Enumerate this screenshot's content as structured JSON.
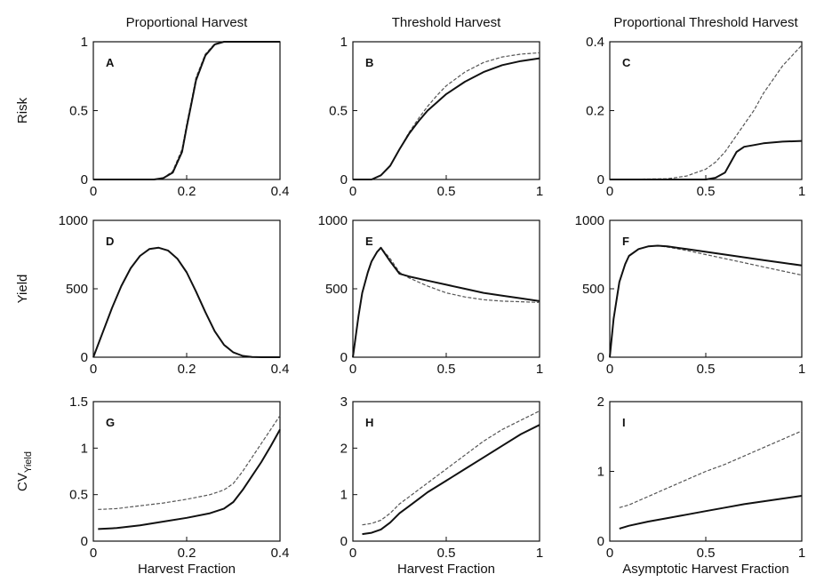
{
  "chart_data": [
    {
      "type": "line",
      "panel": "A",
      "row": 0,
      "col": 0,
      "col_title": "Proportional Harvest",
      "ylabel": "Risk",
      "xlim": [
        0,
        0.4
      ],
      "ylim": [
        0,
        1
      ],
      "xticks": [
        0,
        0.2,
        0.4
      ],
      "xtick_labels": [
        "0",
        "0.2",
        "0.4"
      ],
      "yticks": [
        0,
        0.5,
        1
      ],
      "ytick_labels": [
        "0",
        "0.5",
        "1"
      ],
      "series": [
        {
          "style": "solid",
          "x": [
            0,
            0.13,
            0.15,
            0.17,
            0.19,
            0.2,
            0.21,
            0.22,
            0.24,
            0.26,
            0.28,
            0.3,
            0.4
          ],
          "y": [
            0,
            0,
            0.01,
            0.05,
            0.2,
            0.38,
            0.55,
            0.72,
            0.9,
            0.98,
            1,
            1,
            1
          ]
        },
        {
          "style": "dashed",
          "x": [
            0,
            0.13,
            0.15,
            0.17,
            0.19,
            0.2,
            0.21,
            0.22,
            0.24,
            0.26,
            0.28,
            0.3,
            0.4
          ],
          "y": [
            0,
            0,
            0.01,
            0.06,
            0.22,
            0.4,
            0.57,
            0.74,
            0.91,
            0.985,
            1,
            1,
            1
          ]
        }
      ]
    },
    {
      "type": "line",
      "panel": "B",
      "row": 0,
      "col": 1,
      "col_title": "Threshold Harvest",
      "xlim": [
        0,
        1
      ],
      "ylim": [
        0,
        1
      ],
      "xticks": [
        0,
        0.5,
        1
      ],
      "xtick_labels": [
        "0",
        "0.5",
        "1"
      ],
      "yticks": [
        0,
        0.5,
        1
      ],
      "ytick_labels": [
        "0",
        "0.5",
        "1"
      ],
      "series": [
        {
          "style": "solid",
          "x": [
            0,
            0.1,
            0.15,
            0.2,
            0.25,
            0.3,
            0.35,
            0.4,
            0.45,
            0.5,
            0.6,
            0.7,
            0.8,
            0.9,
            1.0
          ],
          "y": [
            0,
            0,
            0.03,
            0.1,
            0.22,
            0.33,
            0.42,
            0.5,
            0.56,
            0.62,
            0.71,
            0.78,
            0.83,
            0.86,
            0.88
          ]
        },
        {
          "style": "dashed",
          "x": [
            0,
            0.1,
            0.15,
            0.2,
            0.25,
            0.3,
            0.35,
            0.4,
            0.45,
            0.5,
            0.6,
            0.7,
            0.8,
            0.9,
            1.0
          ],
          "y": [
            0,
            0,
            0.03,
            0.1,
            0.22,
            0.34,
            0.44,
            0.53,
            0.61,
            0.68,
            0.78,
            0.85,
            0.89,
            0.91,
            0.92
          ]
        }
      ]
    },
    {
      "type": "line",
      "panel": "C",
      "row": 0,
      "col": 2,
      "col_title": "Proportional Threshold Harvest",
      "xlim": [
        0,
        1
      ],
      "ylim": [
        0,
        0.4
      ],
      "xticks": [
        0,
        0.5,
        1
      ],
      "xtick_labels": [
        "0",
        "0.5",
        "1"
      ],
      "yticks": [
        0,
        0.2,
        0.4
      ],
      "ytick_labels": [
        "0",
        "0.2",
        "0.4"
      ],
      "series": [
        {
          "style": "solid",
          "x": [
            0,
            0.5,
            0.55,
            0.6,
            0.63,
            0.66,
            0.7,
            0.75,
            0.8,
            0.9,
            1.0
          ],
          "y": [
            0,
            0,
            0.005,
            0.02,
            0.05,
            0.08,
            0.095,
            0.1,
            0.105,
            0.11,
            0.112
          ]
        },
        {
          "style": "dashed",
          "x": [
            0,
            0.3,
            0.4,
            0.5,
            0.55,
            0.6,
            0.65,
            0.7,
            0.75,
            0.8,
            0.85,
            0.9,
            0.95,
            1.0
          ],
          "y": [
            0,
            0.002,
            0.01,
            0.03,
            0.05,
            0.08,
            0.12,
            0.16,
            0.2,
            0.25,
            0.29,
            0.33,
            0.36,
            0.39
          ]
        }
      ]
    },
    {
      "type": "line",
      "panel": "D",
      "row": 1,
      "col": 0,
      "ylabel": "Yield",
      "xlim": [
        0,
        0.4
      ],
      "ylim": [
        0,
        1000
      ],
      "xticks": [
        0,
        0.2,
        0.4
      ],
      "xtick_labels": [
        "0",
        "0.2",
        "0.4"
      ],
      "yticks": [
        0,
        500,
        1000
      ],
      "ytick_labels": [
        "0",
        "500",
        "1000"
      ],
      "series": [
        {
          "style": "solid",
          "x": [
            0,
            0.02,
            0.04,
            0.06,
            0.08,
            0.1,
            0.12,
            0.14,
            0.16,
            0.18,
            0.2,
            0.22,
            0.24,
            0.26,
            0.28,
            0.3,
            0.32,
            0.34,
            0.36,
            0.38,
            0.4
          ],
          "y": [
            0,
            180,
            360,
            520,
            650,
            740,
            790,
            800,
            780,
            720,
            620,
            480,
            330,
            190,
            90,
            35,
            10,
            2,
            0,
            0,
            0
          ]
        },
        {
          "style": "dashed",
          "x": [
            0,
            0.02,
            0.04,
            0.06,
            0.08,
            0.1,
            0.12,
            0.14,
            0.16,
            0.18,
            0.2,
            0.22,
            0.24,
            0.26,
            0.28,
            0.3,
            0.32,
            0.34,
            0.36,
            0.38,
            0.4
          ],
          "y": [
            0,
            180,
            360,
            520,
            650,
            740,
            790,
            800,
            780,
            720,
            620,
            480,
            330,
            190,
            90,
            35,
            10,
            2,
            0,
            0,
            0
          ]
        }
      ]
    },
    {
      "type": "line",
      "panel": "E",
      "row": 1,
      "col": 1,
      "xlim": [
        0,
        1
      ],
      "ylim": [
        0,
        1000
      ],
      "xticks": [
        0,
        0.5,
        1
      ],
      "xtick_labels": [
        "0",
        "0.5",
        "1"
      ],
      "yticks": [
        0,
        500,
        1000
      ],
      "ytick_labels": [
        "0",
        "500",
        "1000"
      ],
      "series": [
        {
          "style": "solid",
          "x": [
            0,
            0.03,
            0.05,
            0.08,
            0.1,
            0.13,
            0.15,
            0.2,
            0.25,
            0.3,
            0.4,
            0.5,
            0.6,
            0.7,
            0.8,
            0.9,
            1.0
          ],
          "y": [
            0,
            300,
            470,
            620,
            700,
            770,
            800,
            700,
            610,
            590,
            560,
            530,
            500,
            470,
            450,
            430,
            410
          ]
        },
        {
          "style": "dashed",
          "x": [
            0,
            0.03,
            0.05,
            0.08,
            0.1,
            0.13,
            0.15,
            0.2,
            0.25,
            0.3,
            0.4,
            0.5,
            0.6,
            0.7,
            0.8,
            0.9,
            1.0
          ],
          "y": [
            0,
            300,
            470,
            620,
            700,
            770,
            800,
            720,
            620,
            580,
            520,
            470,
            440,
            420,
            410,
            405,
            400
          ]
        }
      ]
    },
    {
      "type": "line",
      "panel": "F",
      "row": 1,
      "col": 2,
      "xlim": [
        0,
        1
      ],
      "ylim": [
        0,
        1000
      ],
      "xticks": [
        0,
        0.5,
        1
      ],
      "xtick_labels": [
        "0",
        "0.5",
        "1"
      ],
      "yticks": [
        0,
        500,
        1000
      ],
      "ytick_labels": [
        "0",
        "500",
        "1000"
      ],
      "series": [
        {
          "style": "solid",
          "x": [
            0,
            0.02,
            0.05,
            0.08,
            0.1,
            0.15,
            0.2,
            0.25,
            0.3,
            0.4,
            0.5,
            0.6,
            0.7,
            0.8,
            0.9,
            1.0
          ],
          "y": [
            0,
            280,
            550,
            680,
            740,
            790,
            810,
            815,
            810,
            790,
            770,
            750,
            730,
            710,
            690,
            670
          ]
        },
        {
          "style": "dashed",
          "x": [
            0,
            0.02,
            0.05,
            0.08,
            0.1,
            0.15,
            0.2,
            0.25,
            0.3,
            0.4,
            0.5,
            0.6,
            0.7,
            0.8,
            0.9,
            1.0
          ],
          "y": [
            0,
            280,
            550,
            680,
            740,
            790,
            810,
            815,
            805,
            780,
            750,
            720,
            690,
            660,
            630,
            600
          ]
        }
      ]
    },
    {
      "type": "line",
      "panel": "G",
      "row": 2,
      "col": 0,
      "ylabel": "CV",
      "ylabel_sub": "Yield",
      "xlabel": "Harvest Fraction",
      "xlim": [
        0,
        0.4
      ],
      "ylim": [
        0,
        1.5
      ],
      "xticks": [
        0,
        0.2,
        0.4
      ],
      "xtick_labels": [
        "0",
        "0.2",
        "0.4"
      ],
      "yticks": [
        0,
        0.5,
        1,
        1.5
      ],
      "ytick_labels": [
        "0",
        "0.5",
        "1",
        "1.5"
      ],
      "series": [
        {
          "style": "solid",
          "x": [
            0.01,
            0.05,
            0.1,
            0.15,
            0.2,
            0.25,
            0.28,
            0.3,
            0.32,
            0.34,
            0.36,
            0.38,
            0.4
          ],
          "y": [
            0.13,
            0.14,
            0.17,
            0.21,
            0.25,
            0.3,
            0.35,
            0.42,
            0.55,
            0.7,
            0.85,
            1.02,
            1.2
          ]
        },
        {
          "style": "dashed",
          "x": [
            0.01,
            0.05,
            0.1,
            0.15,
            0.2,
            0.25,
            0.28,
            0.3,
            0.32,
            0.34,
            0.36,
            0.38,
            0.4
          ],
          "y": [
            0.34,
            0.35,
            0.38,
            0.41,
            0.45,
            0.5,
            0.55,
            0.62,
            0.75,
            0.9,
            1.05,
            1.2,
            1.35
          ]
        }
      ]
    },
    {
      "type": "line",
      "panel": "H",
      "row": 2,
      "col": 1,
      "xlabel": "Harvest Fraction",
      "xlim": [
        0,
        1
      ],
      "ylim": [
        0,
        3
      ],
      "xticks": [
        0,
        0.5,
        1
      ],
      "xtick_labels": [
        "0",
        "0.5",
        "1"
      ],
      "yticks": [
        0,
        1,
        2,
        3
      ],
      "ytick_labels": [
        "0",
        "1",
        "2",
        "3"
      ],
      "series": [
        {
          "style": "solid",
          "x": [
            0.05,
            0.1,
            0.15,
            0.2,
            0.25,
            0.3,
            0.35,
            0.4,
            0.5,
            0.6,
            0.7,
            0.8,
            0.9,
            1.0
          ],
          "y": [
            0.15,
            0.18,
            0.25,
            0.4,
            0.6,
            0.75,
            0.9,
            1.05,
            1.3,
            1.55,
            1.8,
            2.05,
            2.3,
            2.5
          ]
        },
        {
          "style": "dashed",
          "x": [
            0.05,
            0.1,
            0.15,
            0.2,
            0.25,
            0.3,
            0.35,
            0.4,
            0.5,
            0.6,
            0.7,
            0.8,
            0.9,
            1.0
          ],
          "y": [
            0.35,
            0.38,
            0.45,
            0.6,
            0.8,
            0.95,
            1.1,
            1.25,
            1.55,
            1.85,
            2.15,
            2.4,
            2.6,
            2.8
          ]
        }
      ]
    },
    {
      "type": "line",
      "panel": "I",
      "row": 2,
      "col": 2,
      "xlabel": "Asymptotic Harvest Fraction",
      "xlim": [
        0,
        1
      ],
      "ylim": [
        0,
        2
      ],
      "xticks": [
        0,
        0.5,
        1
      ],
      "xtick_labels": [
        "0",
        "0.5",
        "1"
      ],
      "yticks": [
        0,
        1,
        2
      ],
      "ytick_labels": [
        "0",
        "1",
        "2"
      ],
      "series": [
        {
          "style": "solid",
          "x": [
            0.05,
            0.1,
            0.2,
            0.3,
            0.4,
            0.5,
            0.6,
            0.7,
            0.8,
            0.9,
            1.0
          ],
          "y": [
            0.18,
            0.22,
            0.28,
            0.33,
            0.38,
            0.43,
            0.48,
            0.53,
            0.57,
            0.61,
            0.65
          ]
        },
        {
          "style": "dashed",
          "x": [
            0.05,
            0.1,
            0.2,
            0.3,
            0.4,
            0.5,
            0.6,
            0.7,
            0.8,
            0.9,
            1.0
          ],
          "y": [
            0.48,
            0.52,
            0.64,
            0.76,
            0.88,
            1.0,
            1.1,
            1.22,
            1.34,
            1.46,
            1.58
          ]
        }
      ]
    }
  ]
}
